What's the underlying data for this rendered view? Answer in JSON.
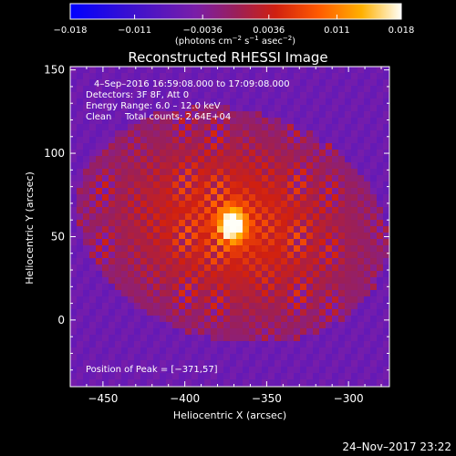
{
  "chart_data": {
    "type": "heatmap",
    "title": "Reconstructed RHESSI Image",
    "xlabel": "Heliocentric X (arcsec)",
    "ylabel": "Heliocentric Y (arcsec)",
    "xlim": [
      -470,
      -275
    ],
    "ylim": [
      -40,
      152
    ],
    "xticks": [
      -450,
      -400,
      -350,
      -300
    ],
    "xtick_labels": [
      "−450",
      "−400",
      "−350",
      "−300"
    ],
    "yticks": [
      0,
      50,
      100,
      150
    ],
    "ytick_labels": [
      "0",
      "50",
      "100",
      "150"
    ],
    "colorbar": {
      "range": [
        -0.018,
        0.018
      ],
      "ticks": [
        -0.018,
        -0.011,
        -0.0036,
        0.0036,
        0.011,
        0.018
      ],
      "tick_labels": [
        "−0.018",
        "−0.011",
        "−0.0036",
        "0.0036",
        "0.011",
        "0.018"
      ],
      "units_prefix": "(photons cm",
      "units_exp1": "−2",
      "units_mid": " s",
      "units_exp2": "−1",
      "units_mid2": " asec",
      "units_exp3": "−2",
      "units_suffix": ")"
    },
    "peak": {
      "x": -371,
      "y": 57
    },
    "annotations": {
      "time_range": "4–Sep–2016 16:59:08.000 to 17:09:08.000",
      "detectors": "Detectors: 3F 8F, Att 0",
      "energy": "Energy Range: 6.0 – 12.0 keV",
      "clean_label": "Clean",
      "total_counts": "Total counts: 2.64E+04",
      "peak_position": "Position of Peak = [−371,57]"
    },
    "grid": false,
    "footer_date": "24–Nov–2017 23:22"
  }
}
